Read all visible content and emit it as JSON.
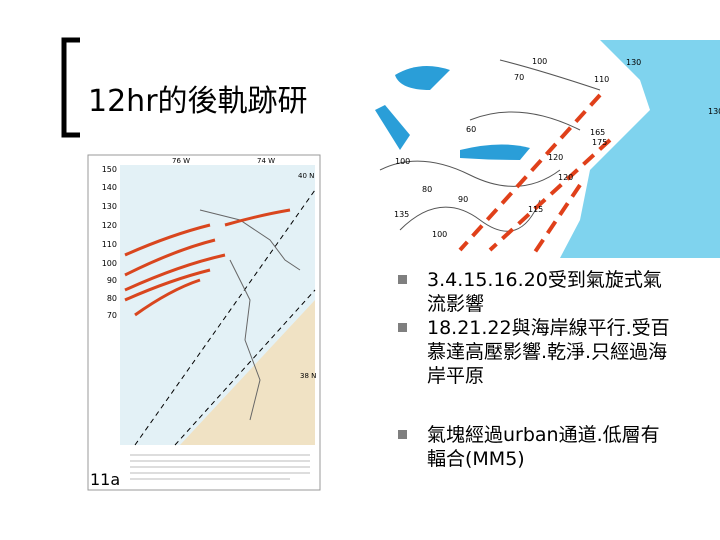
{
  "header": {
    "title": "12hr的後軌跡研"
  },
  "figure_left": {
    "label": "11a",
    "y_labels": [
      "150",
      "140",
      "130",
      "120",
      "110",
      "100",
      "90",
      "80",
      "70"
    ],
    "lat_labels": [
      "40 N",
      "38 N"
    ],
    "lon_labels": [
      "76 W",
      "74 W"
    ]
  },
  "map": {
    "contour_labels": [
      "100",
      "130",
      "70",
      "110",
      "60",
      "130",
      "165",
      "175",
      "100",
      "120",
      "80",
      "90",
      "120",
      "115",
      "100",
      "135"
    ]
  },
  "bullets": [
    "3.4.15.16.20受到氣旋式氣流影響",
    "18.21.22與海岸線平行.受百慕達高壓影響.乾淨.只經過海岸平原",
    "氣塊經過urban通道.低層有輻合(MM5)"
  ]
}
